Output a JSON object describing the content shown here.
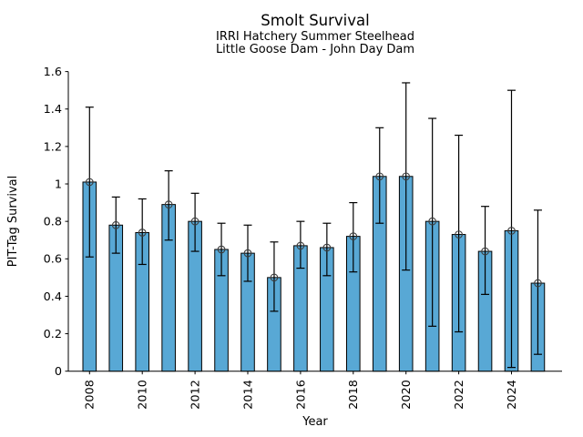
{
  "chart_data": {
    "type": "bar",
    "title": "Smolt Survival",
    "subtitle_lines": [
      "IRRI Hatchery Summer Steelhead",
      "Little Goose Dam - John Day Dam"
    ],
    "xlabel": "Year",
    "ylabel": "PIT-Tag Survival",
    "categories": [
      2008,
      2009,
      2010,
      2011,
      2012,
      2013,
      2014,
      2015,
      2016,
      2017,
      2018,
      2019,
      2020,
      2021,
      2022,
      2023,
      2024,
      2025
    ],
    "values": [
      1.01,
      0.78,
      0.74,
      0.89,
      0.8,
      0.65,
      0.63,
      0.5,
      0.67,
      0.66,
      0.72,
      1.04,
      1.04,
      0.8,
      0.73,
      0.64,
      0.75,
      0.47
    ],
    "error_low": [
      0.61,
      0.63,
      0.57,
      0.7,
      0.64,
      0.51,
      0.48,
      0.32,
      0.55,
      0.51,
      0.53,
      0.79,
      0.54,
      0.24,
      0.21,
      0.41,
      0.02,
      0.09
    ],
    "error_high": [
      1.41,
      0.93,
      0.92,
      1.07,
      0.95,
      0.79,
      0.78,
      0.69,
      0.8,
      0.79,
      0.9,
      1.3,
      1.54,
      1.35,
      1.26,
      0.88,
      1.5,
      0.86
    ],
    "ylim": [
      0,
      1.6
    ],
    "yticks": [
      0,
      0.2,
      0.4,
      0.6,
      0.8,
      1,
      1.2,
      1.4,
      1.6
    ],
    "ytick_labels": [
      "0",
      "0.2",
      "0.4",
      "0.6",
      "0.8",
      "1",
      "1.2",
      "1.4",
      "1.6"
    ],
    "xtick_years": [
      2008,
      2010,
      2012,
      2014,
      2016,
      2018,
      2020,
      2022,
      2024
    ],
    "grid": false,
    "legend": "none",
    "bar_color": "#58a8d5",
    "bar_edge_color": "#000000",
    "error_color": "#000000",
    "marker": "open-circle",
    "marker_edge_color": "#3d3d3d",
    "axis_color": "#000000"
  }
}
